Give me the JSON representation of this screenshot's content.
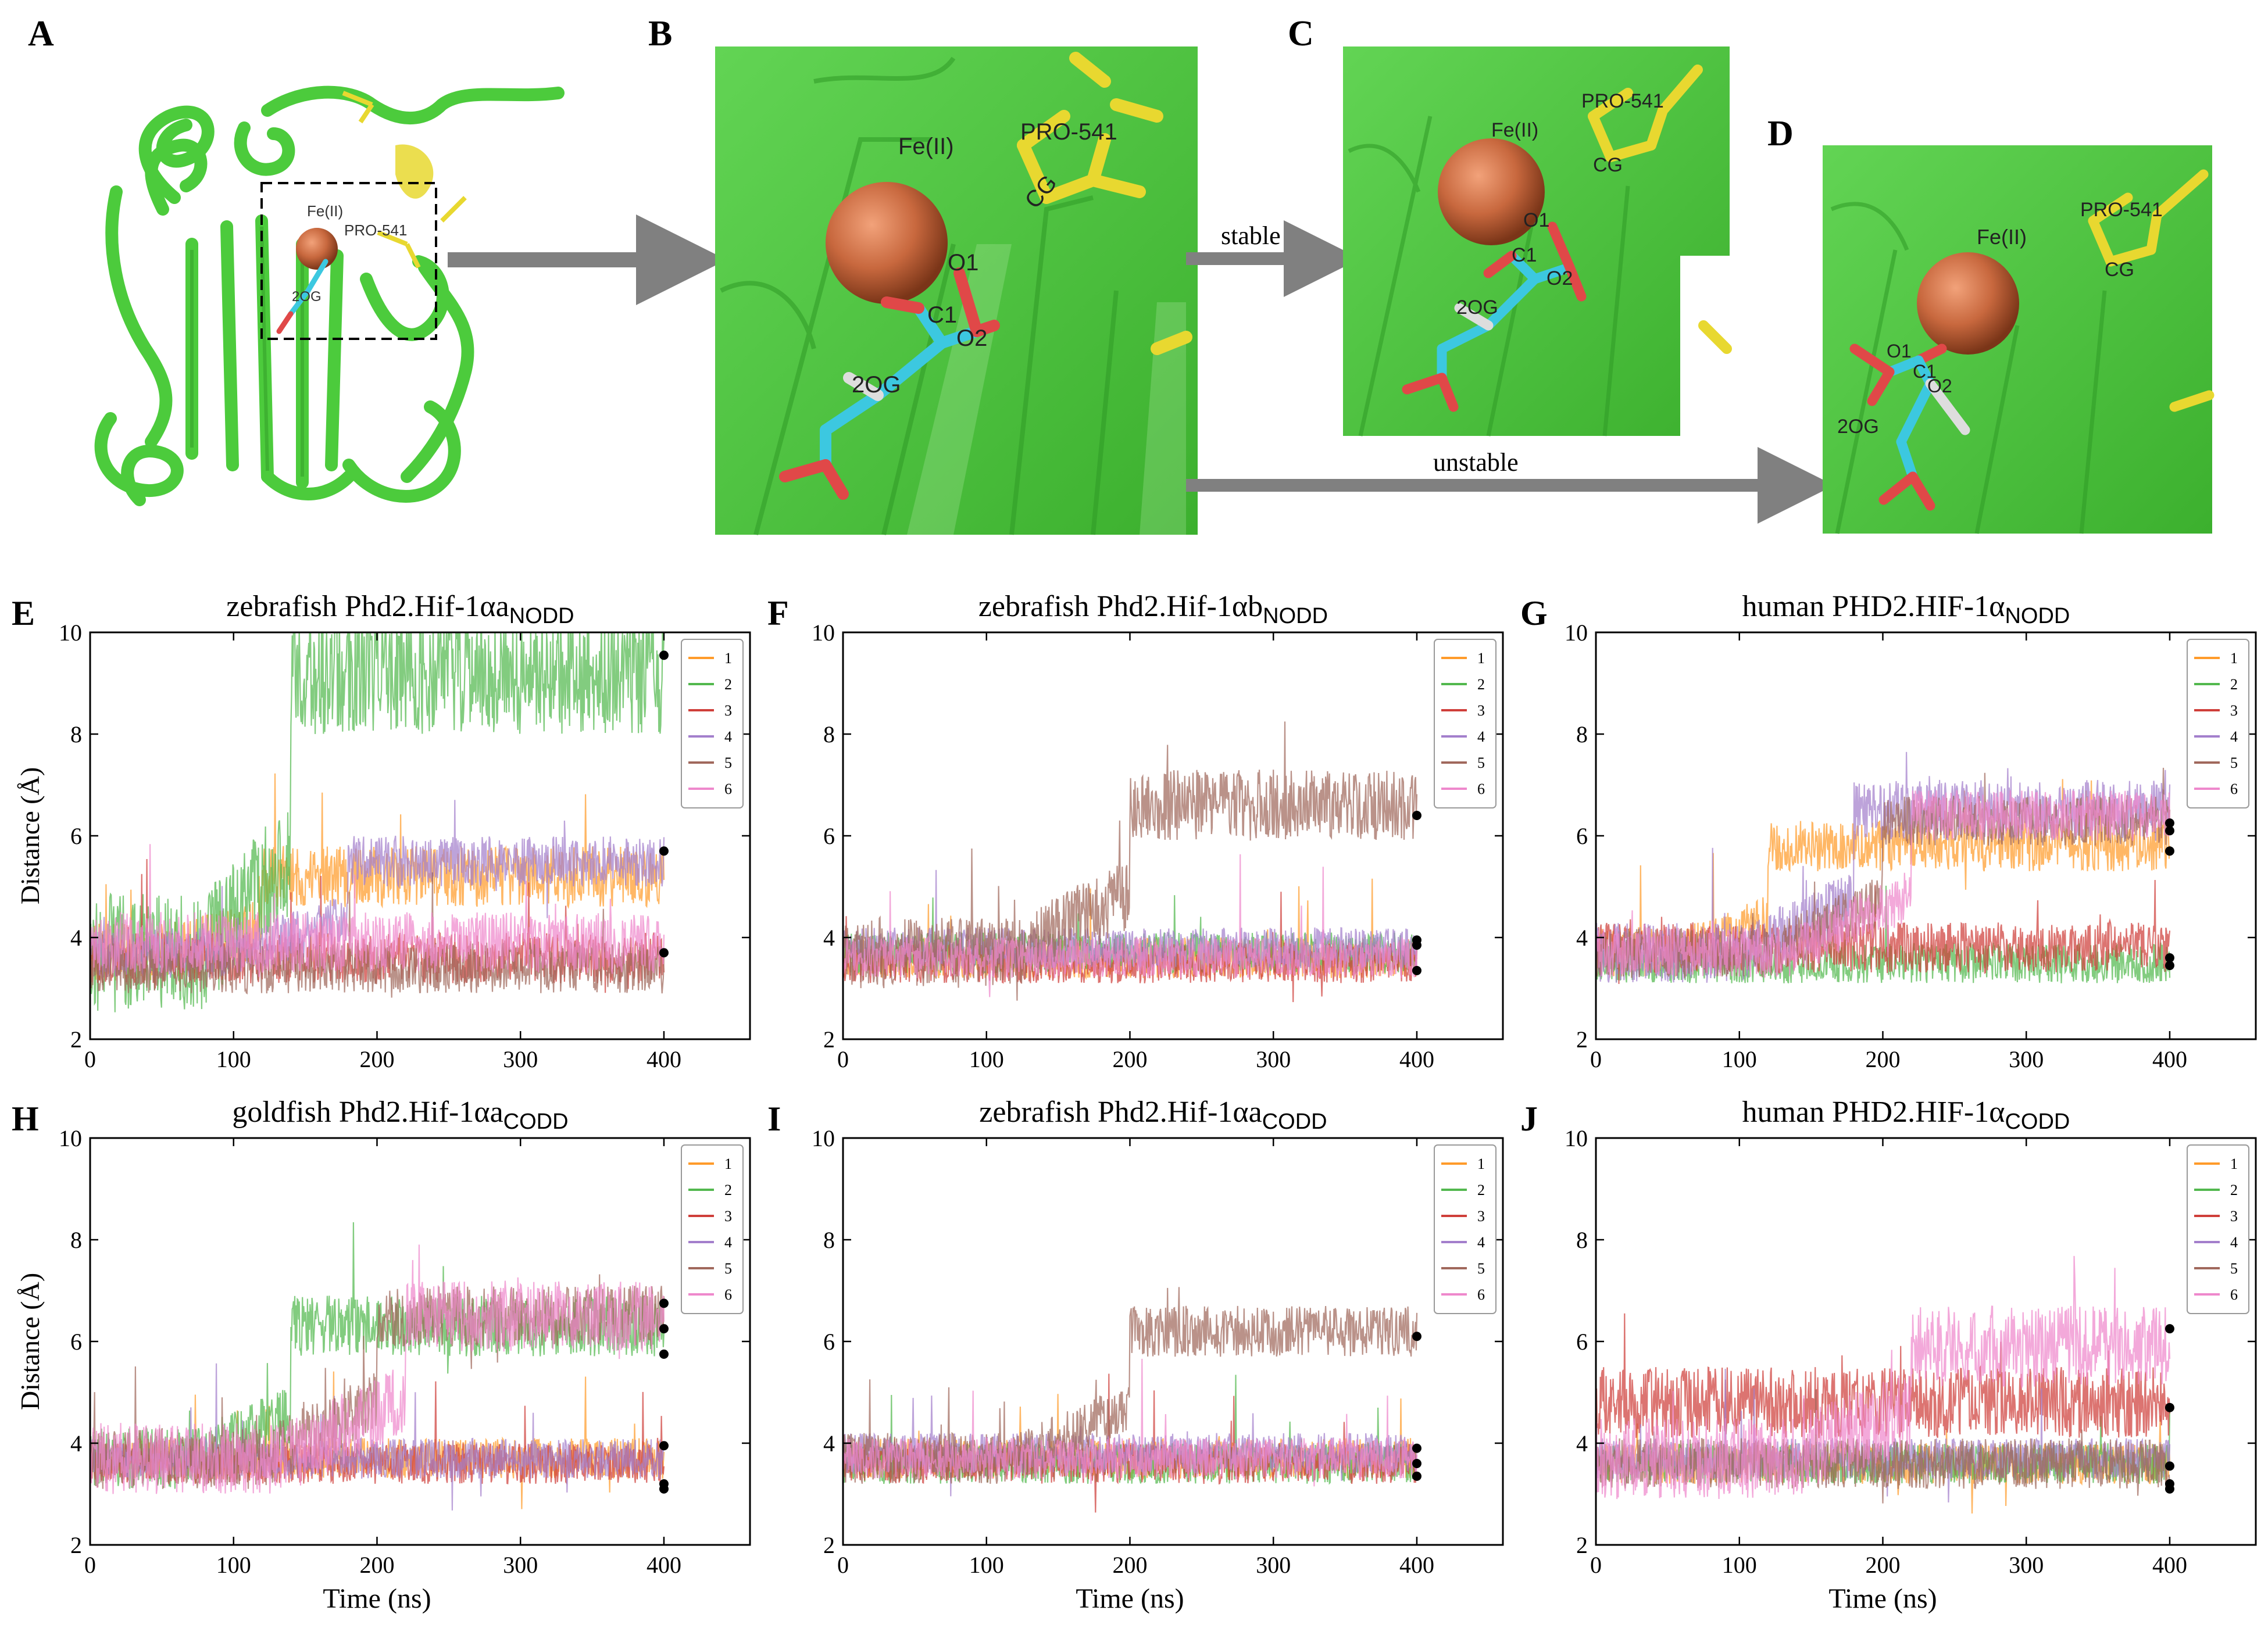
{
  "panel_letters": [
    "A",
    "B",
    "C",
    "D",
    "E",
    "F",
    "G",
    "H",
    "I",
    "J"
  ],
  "structure": {
    "labels": {
      "fe": "Fe(II)",
      "pro": "PRO-541",
      "cg": "CG",
      "o1": "O1",
      "o2": "O2",
      "c1": "C1",
      "ogg": "2OG"
    },
    "stable_label": "stable",
    "unstable_label": "unstable",
    "colors": {
      "protein": "#4ccb3c",
      "protein_dark": "#2f9a26",
      "iron": "#c8683e",
      "ligand": "#3cc8e0",
      "oxygen": "#e04848",
      "pro": "#e8d830",
      "arrow": "#808080"
    }
  },
  "series_colors": [
    "#ff9b2a",
    "#52b84e",
    "#cf3f3a",
    "#a37fcc",
    "#a0685c",
    "#ee88cc"
  ],
  "legend_entries": [
    "1",
    "2",
    "3",
    "4",
    "5",
    "6"
  ],
  "chart_data": [
    {
      "panel": "E",
      "type": "line",
      "title_main": "zebrafish  Phd2.Hif-1αa",
      "title_sub": "NODD",
      "xlabel": "",
      "ylabel": "Distance (Å)",
      "xlim": [
        0,
        460
      ],
      "ylim": [
        2,
        10
      ],
      "xticks": [
        0,
        100,
        200,
        300,
        400
      ],
      "yticks": [
        2,
        4,
        6,
        8,
        10
      ],
      "legend": "top-right",
      "series": [
        {
          "name": "1",
          "base": 5.2,
          "amp": 0.6,
          "final": 5.7
        },
        {
          "name": "2",
          "base": 9.2,
          "amp": 1.2,
          "final": 9.6
        },
        {
          "name": "3",
          "base": 3.6,
          "amp": 0.5,
          "final": 3.7
        },
        {
          "name": "4",
          "base": 5.5,
          "amp": 0.5,
          "final": 5.7
        },
        {
          "name": "5",
          "base": 3.4,
          "amp": 0.5,
          "final": 3.7
        },
        {
          "name": "6",
          "base": 3.9,
          "amp": 0.6,
          "final": 3.7
        }
      ],
      "end_points": [
        9.55,
        5.7,
        3.7
      ]
    },
    {
      "panel": "F",
      "type": "line",
      "title_main": "zebrafish  Phd2.Hif-1αb",
      "title_sub": "NODD",
      "xlabel": "",
      "ylabel": "",
      "xlim": [
        0,
        460
      ],
      "ylim": [
        2,
        10
      ],
      "xticks": [
        0,
        100,
        200,
        300,
        400
      ],
      "yticks": [
        2,
        4,
        6,
        8,
        10
      ],
      "legend": "top-right",
      "series": [
        {
          "name": "1",
          "base": 3.6,
          "amp": 0.4,
          "final": 3.8
        },
        {
          "name": "2",
          "base": 3.7,
          "amp": 0.4,
          "final": 3.9
        },
        {
          "name": "3",
          "base": 3.5,
          "amp": 0.4,
          "final": 3.7
        },
        {
          "name": "4",
          "base": 3.8,
          "amp": 0.4,
          "final": 3.9
        },
        {
          "name": "5",
          "base": 6.6,
          "amp": 0.7,
          "final": 6.4
        },
        {
          "name": "6",
          "base": 3.6,
          "amp": 0.4,
          "final": 3.4
        }
      ],
      "end_points": [
        6.4,
        3.95,
        3.85,
        3.35
      ]
    },
    {
      "panel": "G",
      "type": "line",
      "title_main": "human  PHD2.HIF-1α",
      "title_sub": "NODD",
      "xlabel": "",
      "ylabel": "",
      "xlim": [
        0,
        460
      ],
      "ylim": [
        2,
        10
      ],
      "xticks": [
        0,
        100,
        200,
        300,
        400
      ],
      "yticks": [
        2,
        4,
        6,
        8,
        10
      ],
      "legend": "top-right",
      "series": [
        {
          "name": "1",
          "base": 5.8,
          "amp": 0.5,
          "final": 5.7
        },
        {
          "name": "2",
          "base": 3.5,
          "amp": 0.4,
          "final": 3.5
        },
        {
          "name": "3",
          "base": 3.8,
          "amp": 0.5,
          "final": 3.6
        },
        {
          "name": "4",
          "base": 6.5,
          "amp": 0.6,
          "final": 6.2
        },
        {
          "name": "5",
          "base": 6.3,
          "amp": 0.5,
          "final": 6.1
        },
        {
          "name": "6",
          "base": 6.4,
          "amp": 0.5,
          "final": 6.2
        }
      ],
      "end_points": [
        6.25,
        6.1,
        5.7,
        3.6,
        3.45
      ]
    },
    {
      "panel": "H",
      "type": "line",
      "title_main": "goldfish  Phd2.Hif-1αa",
      "title_sub": "CODD",
      "xlabel": "Time (ns)",
      "ylabel": "Distance (Å)",
      "xlim": [
        0,
        460
      ],
      "ylim": [
        2,
        10
      ],
      "xticks": [
        0,
        100,
        200,
        300,
        400
      ],
      "yticks": [
        2,
        4,
        6,
        8,
        10
      ],
      "legend": "top-right",
      "series": [
        {
          "name": "1",
          "base": 3.7,
          "amp": 0.4,
          "final": 3.9
        },
        {
          "name": "2",
          "base": 6.3,
          "amp": 0.6,
          "final": 6.3
        },
        {
          "name": "3",
          "base": 3.6,
          "amp": 0.4,
          "final": 3.2
        },
        {
          "name": "4",
          "base": 3.7,
          "amp": 0.4,
          "final": 3.9
        },
        {
          "name": "5",
          "base": 6.5,
          "amp": 0.6,
          "final": 5.8
        },
        {
          "name": "6",
          "base": 6.5,
          "amp": 0.7,
          "final": 6.7
        }
      ],
      "end_points": [
        6.75,
        6.25,
        5.75,
        3.95,
        3.2,
        3.1
      ]
    },
    {
      "panel": "I",
      "type": "line",
      "title_main": "zebrafish  Phd2.Hif-1αa",
      "title_sub": "CODD",
      "xlabel": "Time (ns)",
      "ylabel": "",
      "xlim": [
        0,
        460
      ],
      "ylim": [
        2,
        10
      ],
      "xticks": [
        0,
        100,
        200,
        300,
        400
      ],
      "yticks": [
        2,
        4,
        6,
        8,
        10
      ],
      "legend": "top-right",
      "series": [
        {
          "name": "1",
          "base": 3.7,
          "amp": 0.4,
          "final": 3.9
        },
        {
          "name": "2",
          "base": 3.6,
          "amp": 0.4,
          "final": 3.6
        },
        {
          "name": "3",
          "base": 3.6,
          "amp": 0.4,
          "final": 3.4
        },
        {
          "name": "4",
          "base": 3.8,
          "amp": 0.4,
          "final": 3.8
        },
        {
          "name": "5",
          "base": 6.2,
          "amp": 0.5,
          "final": 6.1
        },
        {
          "name": "6",
          "base": 3.7,
          "amp": 0.4,
          "final": 3.5
        }
      ],
      "end_points": [
        6.1,
        3.9,
        3.6,
        3.35
      ]
    },
    {
      "panel": "J",
      "type": "line",
      "title_main": "human  PHD2.HIF-1α",
      "title_sub": "CODD",
      "xlabel": "Time (ns)",
      "ylabel": "",
      "xlim": [
        0,
        460
      ],
      "ylim": [
        2,
        10
      ],
      "xticks": [
        0,
        100,
        200,
        300,
        400
      ],
      "yticks": [
        2,
        4,
        6,
        8,
        10
      ],
      "legend": "top-right",
      "series": [
        {
          "name": "1",
          "base": 3.6,
          "amp": 0.4,
          "final": 3.5
        },
        {
          "name": "2",
          "base": 3.6,
          "amp": 0.4,
          "final": 3.6
        },
        {
          "name": "3",
          "base": 4.8,
          "amp": 0.7,
          "final": 4.7
        },
        {
          "name": "4",
          "base": 3.7,
          "amp": 0.4,
          "final": 3.6
        },
        {
          "name": "5",
          "base": 3.6,
          "amp": 0.5,
          "final": 3.2
        },
        {
          "name": "6",
          "base": 5.9,
          "amp": 0.8,
          "final": 6.3
        }
      ],
      "end_points": [
        6.25,
        4.7,
        3.55,
        3.2,
        3.1
      ]
    }
  ]
}
